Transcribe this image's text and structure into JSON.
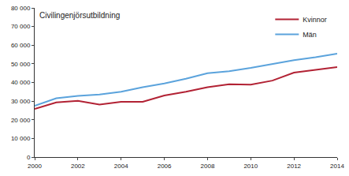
{
  "chart_data": {
    "type": "line",
    "title": "Civilingenjörsutbildning",
    "x": [
      2000,
      2001,
      2002,
      2003,
      2004,
      2005,
      2006,
      2007,
      2008,
      2009,
      2010,
      2011,
      2012,
      2013,
      2014
    ],
    "series": [
      {
        "name": "Kvinnor",
        "color": "#b22234",
        "values": [
          25800,
          29300,
          30200,
          28200,
          29600,
          29600,
          33000,
          35000,
          37500,
          39000,
          38800,
          41000,
          45300,
          46800,
          48300
        ]
      },
      {
        "name": "Män",
        "color": "#5ba3dc",
        "values": [
          27500,
          31500,
          32800,
          33500,
          35000,
          37500,
          39500,
          42000,
          45000,
          46000,
          47800,
          50000,
          52000,
          53500,
          55500
        ]
      }
    ],
    "xlim": [
      2000,
      2014
    ],
    "xticks": [
      2000,
      2002,
      2004,
      2006,
      2008,
      2010,
      2012,
      2014
    ],
    "ylim": [
      0,
      80000
    ],
    "yticks": [
      0,
      {
        "value": 10000,
        "label": "10 000"
      },
      {
        "value": 20000,
        "label": "20 000"
      },
      {
        "value": 30000,
        "label": "30 000"
      },
      {
        "value": 40000,
        "label": "40 000"
      },
      {
        "value": 50000,
        "label": "50 000"
      },
      {
        "value": 60000,
        "label": "60 000"
      },
      {
        "value": 70000,
        "label": "70 000"
      },
      {
        "value": 80000,
        "label": "80 000"
      }
    ],
    "grid": false,
    "legend": "top-right"
  }
}
